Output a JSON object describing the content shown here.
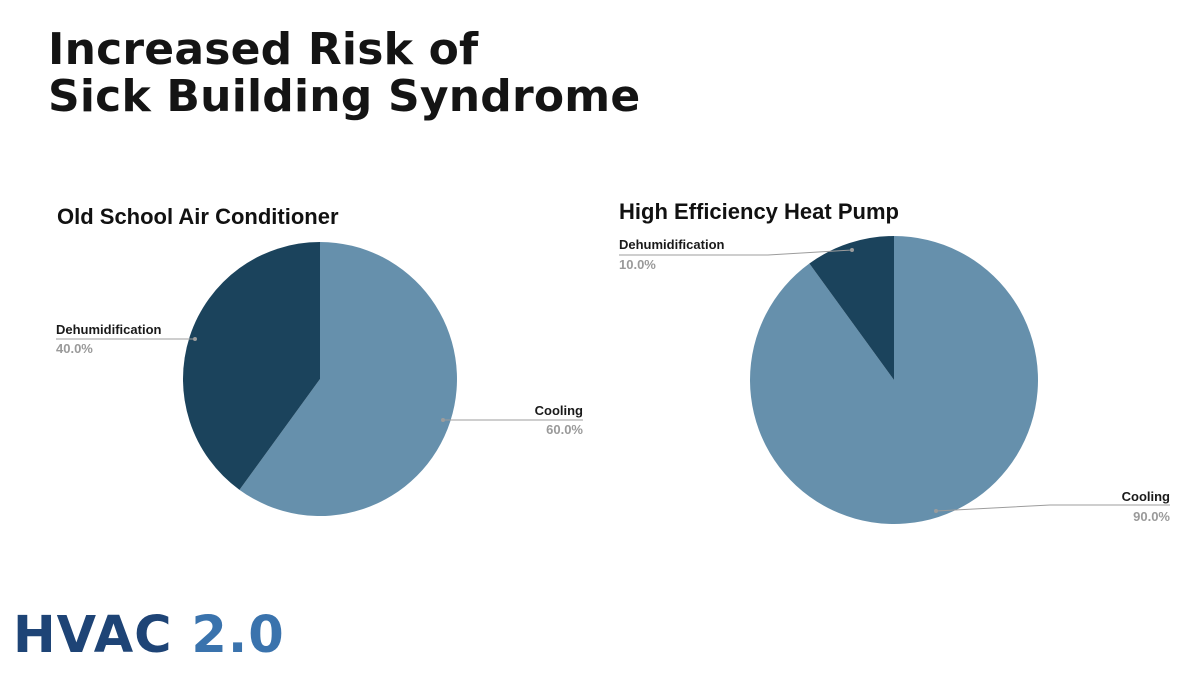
{
  "slide": {
    "title_line1": "Increased Risk of",
    "title_line2": "Sick Building Syndrome"
  },
  "brand": {
    "name": "HVAC",
    "version": "2.0",
    "colors": {
      "primary": "#1e4476",
      "secondary": "#3a73ad"
    }
  },
  "chart_data": [
    {
      "type": "pie",
      "title": "Old School Air Conditioner",
      "slices": [
        {
          "label": "Cooling",
          "value": 60.0,
          "pct_label": "60.0%",
          "color": "#6690ac"
        },
        {
          "label": "Dehumidification",
          "value": 40.0,
          "pct_label": "40.0%",
          "color": "#1b435c"
        }
      ],
      "start": "12 o'clock, clockwise"
    },
    {
      "type": "pie",
      "title": "High Efficiency Heat Pump",
      "slices": [
        {
          "label": "Cooling",
          "value": 90.0,
          "pct_label": "90.0%",
          "color": "#6690ac"
        },
        {
          "label": "Dehumidification",
          "value": 10.0,
          "pct_label": "10.0%",
          "color": "#1b435c"
        }
      ],
      "start": "12 o'clock, clockwise"
    }
  ]
}
